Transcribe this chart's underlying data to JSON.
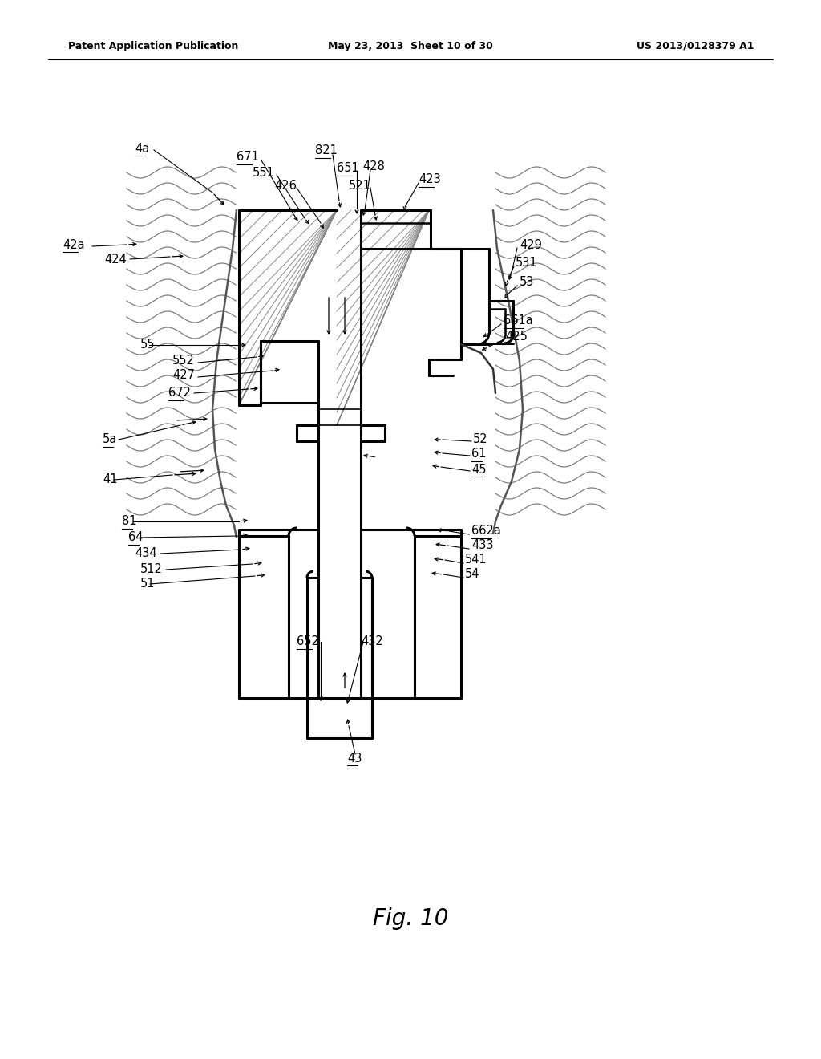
{
  "bg_color": "#ffffff",
  "title": "Fig. 10",
  "header_left": "Patent Application Publication",
  "header_center": "May 23, 2013  Sheet 10 of 30",
  "header_right": "US 2013/0128379 A1",
  "line_color": "#000000",
  "wave_color": "#666666",
  "diag_color": "#888888"
}
